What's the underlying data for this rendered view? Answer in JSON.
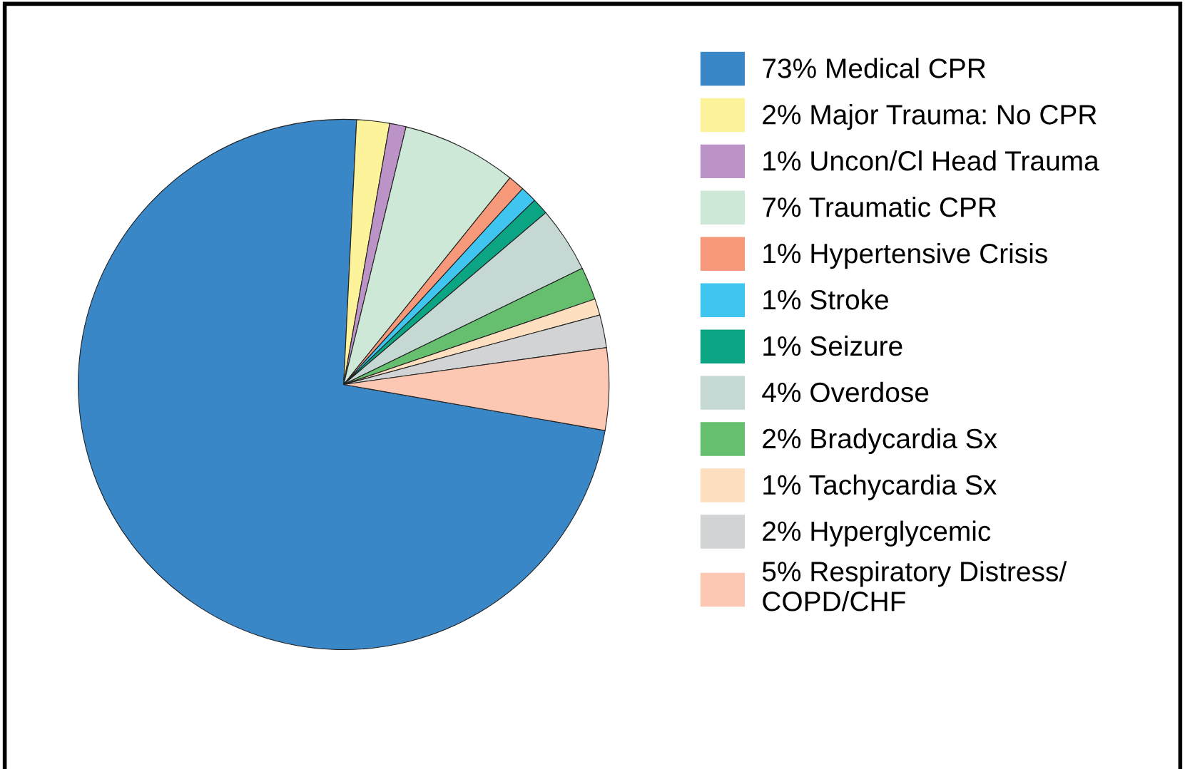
{
  "chart_data": {
    "type": "pie",
    "categories": [
      "73% Medical CPR",
      "2% Major Trauma: No CPR",
      "1% Uncon/Cl Head Trauma",
      "7% Traumatic CPR",
      "1% Hypertensive Crisis",
      "1% Stroke",
      "1% Seizure",
      "4% Overdose",
      "2% Bradycardia Sx",
      "1% Tachycardia Sx",
      "2% Hyperglycemic",
      "5% Respiratory Distress/\nCOPD/CHF"
    ],
    "values": [
      73,
      2,
      1,
      7,
      1,
      1,
      1,
      4,
      2,
      1,
      2,
      5
    ],
    "colors": [
      "#3a87c8",
      "#fdf39a",
      "#bc93c6",
      "#cde8d6",
      "#f6997a",
      "#3fc5f0",
      "#0ca583",
      "#c6d8d3",
      "#66bf6f",
      "#fee0c0",
      "#d1d3d4",
      "#fcc8b3"
    ],
    "legend": "right"
  }
}
